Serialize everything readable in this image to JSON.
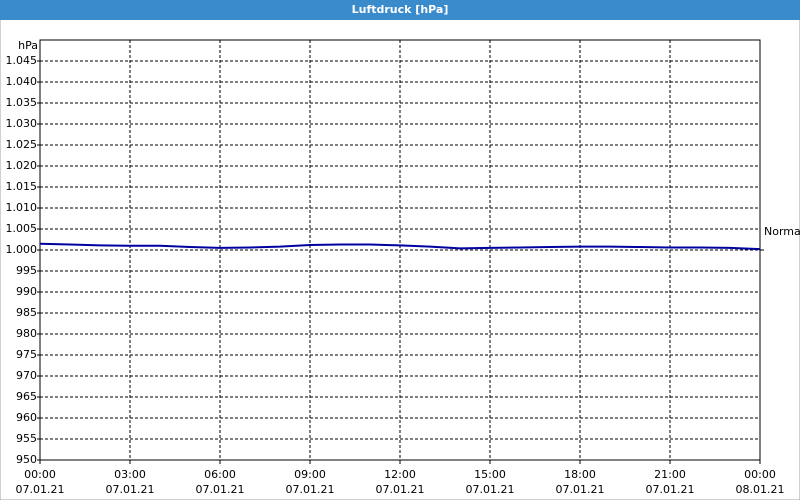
{
  "chart_data": {
    "type": "line",
    "title": "Luftdruck [hPa]",
    "y_label": "hPa",
    "x": [
      0,
      1,
      2,
      3,
      4,
      5,
      6,
      7,
      8,
      9,
      10,
      11,
      12,
      13,
      14,
      15,
      16,
      17,
      18,
      19,
      20,
      21,
      22,
      23,
      24
    ],
    "series": [
      {
        "name": "Luftdruck",
        "color": "#0000a0",
        "values": [
          1001.5,
          1001.3,
          1001.1,
          1001.0,
          1001.0,
          1000.7,
          1000.5,
          1000.6,
          1000.8,
          1001.2,
          1001.3,
          1001.3,
          1001.1,
          1000.8,
          1000.4,
          1000.5,
          1000.6,
          1000.7,
          1000.8,
          1000.8,
          1000.7,
          1000.6,
          1000.6,
          1000.5,
          1000.2
        ]
      }
    ],
    "xlim": [
      0,
      24
    ],
    "xticks": [
      {
        "value": 0,
        "label": "00:00"
      },
      {
        "value": 3,
        "label": "03:00"
      },
      {
        "value": 6,
        "label": "06:00"
      },
      {
        "value": 9,
        "label": "09:00"
      },
      {
        "value": 12,
        "label": "12:00"
      },
      {
        "value": 15,
        "label": "15:00"
      },
      {
        "value": 18,
        "label": "18:00"
      },
      {
        "value": 21,
        "label": "21:00"
      },
      {
        "value": 24,
        "label": "00:00"
      }
    ],
    "xtick_dates": [
      "07.01.21",
      "07.01.21",
      "07.01.21",
      "07.01.21",
      "07.01.21",
      "07.01.21",
      "07.01.21",
      "07.01.21",
      "08.01.21"
    ],
    "ylim": [
      950,
      1050
    ],
    "yticks": [
      950,
      955,
      960,
      965,
      970,
      975,
      980,
      985,
      990,
      995,
      {
        "value": 1000,
        "label": "1.000"
      },
      {
        "value": 1005,
        "label": "1.005"
      },
      {
        "value": 1010,
        "label": "1.010"
      },
      {
        "value": 1015,
        "label": "1.015"
      },
      {
        "value": 1020,
        "label": "1.020"
      },
      {
        "value": 1025,
        "label": "1.025"
      },
      {
        "value": 1030,
        "label": "1.030"
      },
      {
        "value": 1035,
        "label": "1.035"
      },
      {
        "value": 1040,
        "label": "1.040"
      },
      {
        "value": 1045,
        "label": "1.045"
      }
    ],
    "reference": {
      "label": "Normal",
      "value": 1000
    },
    "grid": true
  }
}
